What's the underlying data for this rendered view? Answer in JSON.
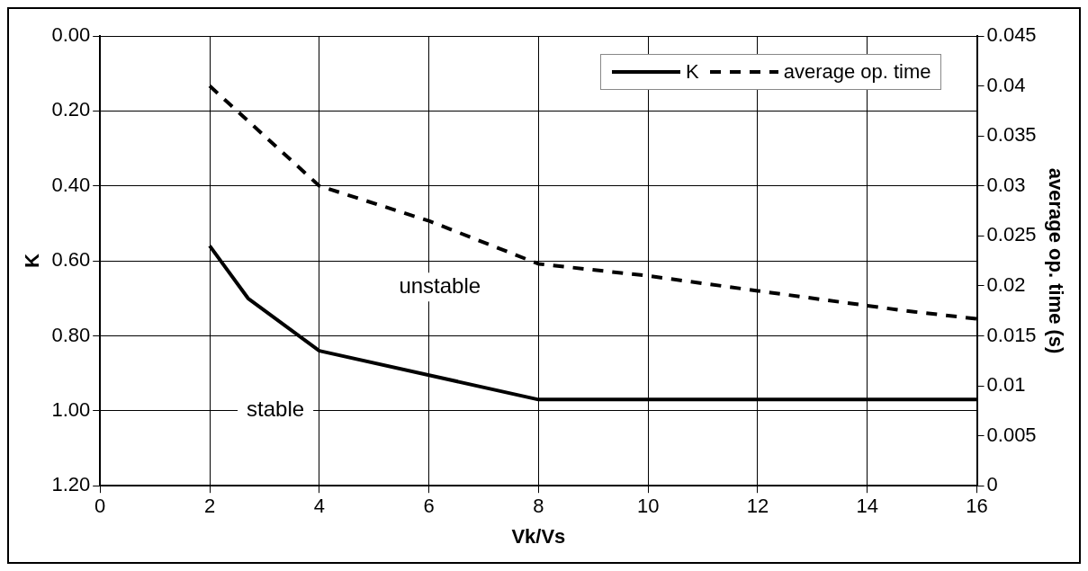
{
  "chart_data": {
    "type": "line",
    "xlabel": "Vk/Vs",
    "ylabel": "K",
    "y2label": "average op. time (s)",
    "xlim": [
      0,
      16
    ],
    "xticks": [
      0,
      2,
      4,
      6,
      8,
      10,
      12,
      14,
      16
    ],
    "ylim": [
      1.2,
      0
    ],
    "yticks": [
      {
        "value": 0,
        "label": "0.00"
      },
      {
        "value": 0.2,
        "label": "0.20"
      },
      {
        "value": 0.4,
        "label": "0.40"
      },
      {
        "value": 0.6,
        "label": "0.60"
      },
      {
        "value": 0.8,
        "label": "0.80"
      },
      {
        "value": 1,
        "label": "1.00"
      },
      {
        "value": 1.2,
        "label": "1.20"
      }
    ],
    "y2lim": [
      0,
      0.045
    ],
    "y2ticks": [
      0,
      0.005,
      0.01,
      0.015,
      0.02,
      0.025,
      0.03,
      0.035,
      0.04,
      0.045
    ],
    "series": [
      {
        "name": "K",
        "color": "#000000",
        "line_style": "solid",
        "x": [
          2,
          2.7,
          4,
          8,
          16
        ],
        "values": [
          0.56,
          0.7,
          0.84,
          0.97,
          0.97
        ]
      },
      {
        "name": "average op. time",
        "color": "#000000",
        "line_style": "dashed",
        "axis": "y2",
        "x": [
          2,
          4,
          6,
          8,
          10,
          12,
          14.7,
          16
        ],
        "values": [
          0.04,
          0.03,
          0.0265,
          0.0222,
          0.021,
          0.0195,
          0.0175,
          0.0167
        ]
      }
    ],
    "annotations": [
      "unstable",
      "stable"
    ],
    "grid": true,
    "legend": "top right",
    "marker": "none"
  }
}
